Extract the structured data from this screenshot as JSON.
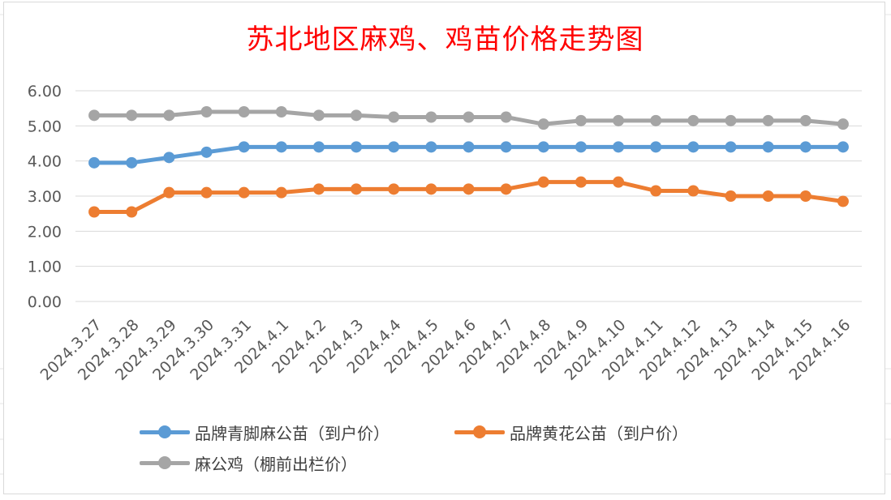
{
  "title": "苏北地区麻鸡、鸡苗价格走势图",
  "chart_data": {
    "type": "line",
    "title": "苏北地区麻鸡、鸡苗价格走势图",
    "xlabel": "",
    "ylabel": "",
    "ylim": [
      0,
      6
    ],
    "yticks": [
      "0.00",
      "1.00",
      "2.00",
      "3.00",
      "4.00",
      "5.00",
      "6.00"
    ],
    "grid": true,
    "legend_position": "bottom",
    "categories": [
      "2024.3.27",
      "2024.3.28",
      "2024.3.29",
      "2024.3.30",
      "2024.3.31",
      "2024.4.1",
      "2024.4.2",
      "2024.4.3",
      "2024.4.4",
      "2024.4.5",
      "2024.4.6",
      "2024.4.7",
      "2024.4.8",
      "2024.4.9",
      "2024.4.10",
      "2024.4.11",
      "2024.4.12",
      "2024.4.13",
      "2024.4.14",
      "2024.4.15",
      "2024.4.16"
    ],
    "series": [
      {
        "name": "品牌青脚麻公苗（到户价）",
        "color": "#5b9bd5",
        "values": [
          3.95,
          3.95,
          4.1,
          4.25,
          4.4,
          4.4,
          4.4,
          4.4,
          4.4,
          4.4,
          4.4,
          4.4,
          4.4,
          4.4,
          4.4,
          4.4,
          4.4,
          4.4,
          4.4,
          4.4,
          4.4
        ]
      },
      {
        "name": "品牌黄花公苗（到户价）",
        "color": "#ed7d31",
        "values": [
          2.55,
          2.55,
          3.1,
          3.1,
          3.1,
          3.1,
          3.2,
          3.2,
          3.2,
          3.2,
          3.2,
          3.2,
          3.4,
          3.4,
          3.4,
          3.15,
          3.15,
          3.0,
          3.0,
          3.0,
          2.85
        ]
      },
      {
        "name": "麻公鸡（棚前出栏价）",
        "color": "#a5a5a5",
        "values": [
          5.3,
          5.3,
          5.3,
          5.4,
          5.4,
          5.4,
          5.3,
          5.3,
          5.25,
          5.25,
          5.25,
          5.25,
          5.05,
          5.15,
          5.15,
          5.15,
          5.15,
          5.15,
          5.15,
          5.15,
          5.05
        ]
      }
    ]
  }
}
